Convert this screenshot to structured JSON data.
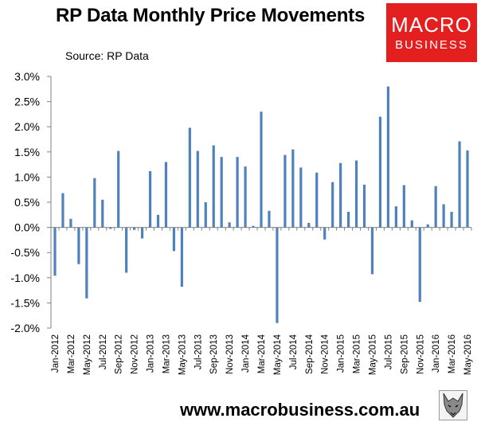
{
  "header": {
    "title": "RP Data Monthly Price Movements",
    "source": "Source: RP Data"
  },
  "logo": {
    "line1": "MACRO",
    "line2": "BUSINESS"
  },
  "footer": {
    "url": "www.macrobusiness.com.au"
  },
  "colors": {
    "bar": "#4f81bd",
    "axis": "#808080",
    "brand": "#e3201f"
  },
  "chart_data": {
    "type": "bar",
    "title": "RP Data Monthly Price Movements",
    "xlabel": "",
    "ylabel": "",
    "ylim": [
      -2.0,
      3.0
    ],
    "yticks": [
      "3.0%",
      "2.5%",
      "2.0%",
      "1.5%",
      "1.0%",
      "0.5%",
      "0.0%",
      "-0.5%",
      "-1.0%",
      "-1.5%",
      "-2.0%"
    ],
    "ytick_values": [
      3.0,
      2.5,
      2.0,
      1.5,
      1.0,
      0.5,
      0.0,
      -0.5,
      -1.0,
      -1.5,
      -2.0
    ],
    "categories": [
      "Jan-2012",
      "Feb-2012",
      "Mar-2012",
      "Apr-2012",
      "May-2012",
      "Jun-2012",
      "Jul-2012",
      "Aug-2012",
      "Sep-2012",
      "Oct-2012",
      "Nov-2012",
      "Dec-2012",
      "Jan-2013",
      "Feb-2013",
      "Mar-2013",
      "Apr-2013",
      "May-2013",
      "Jun-2013",
      "Jul-2013",
      "Aug-2013",
      "Sep-2013",
      "Oct-2013",
      "Nov-2013",
      "Dec-2013",
      "Jan-2014",
      "Feb-2014",
      "Mar-2014",
      "Apr-2014",
      "May-2014",
      "Jun-2014",
      "Jul-2014",
      "Aug-2014",
      "Sep-2014",
      "Oct-2014",
      "Nov-2014",
      "Dec-2014",
      "Jan-2015",
      "Feb-2015",
      "Mar-2015",
      "Apr-2015",
      "May-2015",
      "Jun-2015",
      "Jul-2015",
      "Aug-2015",
      "Sep-2015",
      "Oct-2015",
      "Nov-2015",
      "Dec-2015",
      "Jan-2016",
      "Feb-2016",
      "Mar-2016",
      "Apr-2016",
      "May-2016"
    ],
    "tick_labels": [
      "Jan-2012",
      "Mar-2012",
      "May-2012",
      "Jul-2012",
      "Sep-2012",
      "Nov-2012",
      "Jan-2013",
      "Mar-2013",
      "May-2013",
      "Jul-2013",
      "Sep-2013",
      "Nov-2013",
      "Jan-2014",
      "Mar-2014",
      "May-2014",
      "Jul-2014",
      "Sep-2014",
      "Nov-2014",
      "Jan-2015",
      "Mar-2015",
      "May-2015",
      "Jul-2015",
      "Sep-2015",
      "Nov-2015",
      "Jan-2016",
      "Mar-2016",
      "May-2016"
    ],
    "series": [
      {
        "name": "Monthly price movement",
        "values": [
          -0.96,
          0.68,
          0.17,
          -0.73,
          -1.41,
          0.98,
          0.55,
          -0.03,
          1.52,
          -0.9,
          -0.05,
          -0.22,
          1.12,
          0.25,
          1.3,
          -0.47,
          -1.18,
          1.98,
          1.52,
          0.5,
          1.63,
          1.4,
          0.1,
          1.4,
          1.21,
          0.03,
          2.3,
          0.33,
          -1.9,
          1.44,
          1.55,
          1.19,
          0.09,
          1.09,
          -0.24,
          0.9,
          1.28,
          0.31,
          1.33,
          0.85,
          -0.93,
          2.2,
          2.8,
          0.42,
          0.84,
          0.14,
          -1.48,
          0.06,
          0.82,
          0.46,
          0.31,
          1.71,
          1.53
        ]
      }
    ]
  }
}
